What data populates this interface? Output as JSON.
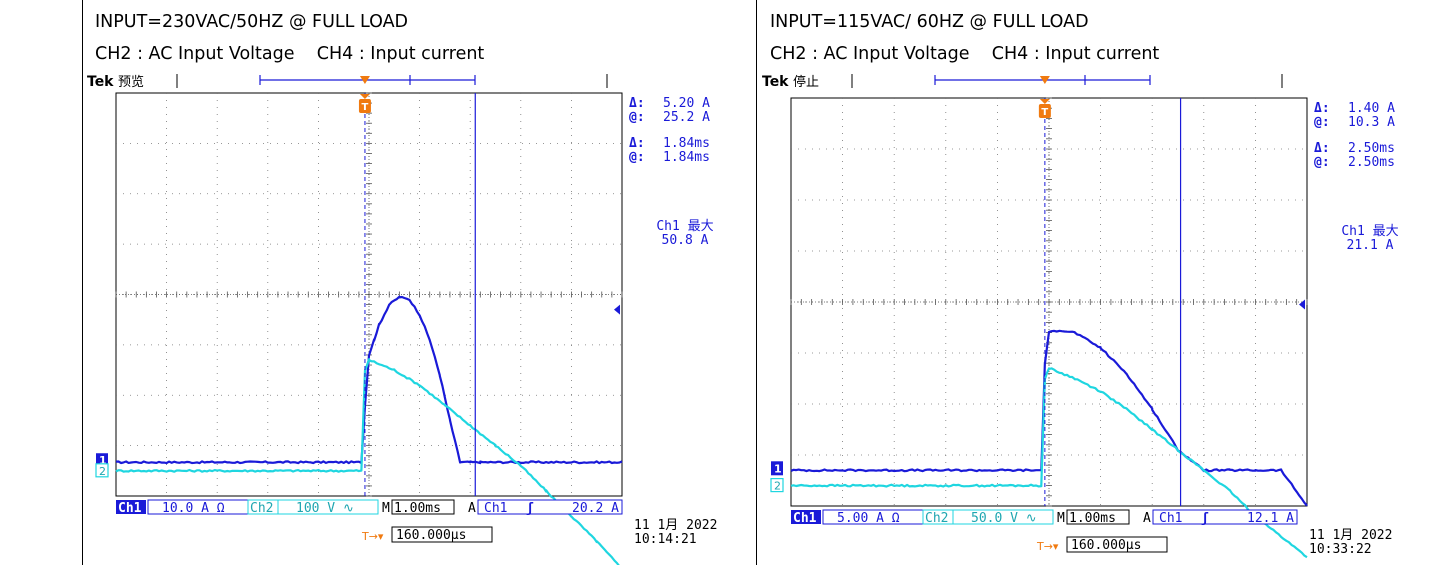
{
  "chart_data": [
    {
      "type": "line",
      "title": "INPUT=230VAC/50HZ @ FULL LOAD",
      "subtitle": "CH2 : AC Input Voltage    CH4 : Input current",
      "brand": "Tek",
      "status": "预览",
      "grid": true,
      "x_divisions": 10,
      "y_divisions": 8,
      "x_unit_per_div": "1.00ms",
      "readouts": {
        "amp_delta_label": "Δ:",
        "amp_delta": "5.20 A",
        "amp_at_label": "@:",
        "amp_at": "25.2 A",
        "time_delta_label": "Δ:",
        "time_delta": "1.84ms",
        "time_at_label": "@:",
        "time_at": "1.84ms",
        "max_label": "Ch1 最大",
        "max_value": "50.8 A"
      },
      "markers": {
        "ch1": "1",
        "ch2": "2",
        "trigger": "T"
      },
      "bottom_bar": {
        "ch1_label": "Ch1",
        "ch1_scale": "10.0 A Ω",
        "ch2_label": "Ch2",
        "ch2_scale": "100 V ∿",
        "m_label": "M",
        "m_value": "1.00ms",
        "trig_label": "A",
        "trig_ch": "Ch1",
        "trig_slope": "ʃ",
        "trig_level": "20.2 A",
        "pos_icon": "T→▾",
        "pos_value": "160.000μs",
        "date": "11 1月  2022",
        "time": "10:14:21"
      },
      "series": [
        {
          "name": "Ch1",
          "color": "#1a1ad8",
          "x_div": [
            0,
            4.85,
            4.92,
            5.0,
            5.1,
            5.2,
            5.4,
            5.6,
            5.8,
            6.0,
            6.2,
            6.4,
            6.6,
            6.8,
            7.0,
            7.2,
            7.4,
            10
          ],
          "y_div": [
            -3.33,
            -3.33,
            -2.2,
            -1.2,
            -0.9,
            -0.6,
            -0.2,
            -0.05,
            -0.1,
            -0.4,
            -0.9,
            -1.6,
            -2.5,
            -3.33,
            -3.33,
            -3.33,
            -3.33,
            -3.33
          ]
        },
        {
          "name": "Ch2",
          "color": "#1fd6e0",
          "x_div": [
            0,
            4.85,
            4.92,
            5.0,
            5.5,
            6.0,
            6.5,
            7.0,
            7.5,
            8.0,
            8.5,
            9.0,
            9.5,
            10
          ],
          "y_div": [
            -3.5,
            -3.5,
            -1.5,
            -1.3,
            -1.5,
            -1.8,
            -2.2,
            -2.6,
            -3.0,
            -3.4,
            -3.9,
            -4.4,
            -4.9,
            -5.45
          ]
        }
      ]
    },
    {
      "type": "line",
      "title": "INPUT=115VAC/ 60HZ @ FULL LOAD",
      "subtitle": "CH2 : AC Input Voltage    CH4 : Input current",
      "brand": "Tek",
      "status": "停止",
      "grid": true,
      "x_divisions": 10,
      "y_divisions": 8,
      "x_unit_per_div": "1.00ms",
      "readouts": {
        "amp_delta_label": "Δ:",
        "amp_delta": "1.40 A",
        "amp_at_label": "@:",
        "amp_at": "10.3 A",
        "time_delta_label": "Δ:",
        "time_delta": "2.50ms",
        "time_at_label": "@:",
        "time_at": "2.50ms",
        "max_label": "Ch1 最大",
        "max_value": "21.1 A"
      },
      "markers": {
        "ch1": "1",
        "ch2": "2",
        "trigger": "T"
      },
      "bottom_bar": {
        "ch1_label": "Ch1",
        "ch1_scale": "5.00 A Ω",
        "ch2_label": "Ch2",
        "ch2_scale": "50.0 V ∿",
        "m_label": "M",
        "m_value": "1.00ms",
        "trig_label": "A",
        "trig_ch": "Ch1",
        "trig_slope": "ʃ",
        "trig_level": "12.1 A",
        "pos_icon": "T→▾",
        "pos_value": "160.000μs",
        "date": "11 1月  2022",
        "time": "10:33:22"
      },
      "series": [
        {
          "name": "Ch1",
          "color": "#1a1ad8",
          "x_div": [
            0,
            4.85,
            4.92,
            5.0,
            5.2,
            5.5,
            6.0,
            6.5,
            7.0,
            7.5,
            8.0,
            8.5,
            9.0,
            9.5,
            10
          ],
          "y_div": [
            -3.3,
            -3.3,
            -1.2,
            -0.6,
            -0.55,
            -0.6,
            -0.9,
            -1.4,
            -2.1,
            -2.9,
            -3.3,
            -3.3,
            -3.3,
            -3.3,
            -4.0
          ],
          "note_hidden": ""
        },
        {
          "name": "Ch2",
          "color": "#1fd6e0",
          "x_div": [
            0,
            4.85,
            4.92,
            5.0,
            5.5,
            6.0,
            6.5,
            7.0,
            7.5,
            8.0,
            8.5,
            9.0,
            9.5,
            10
          ],
          "y_div": [
            -3.6,
            -3.6,
            -1.5,
            -1.3,
            -1.5,
            -1.75,
            -2.1,
            -2.5,
            -2.9,
            -3.3,
            -3.7,
            -4.2,
            -4.6,
            -5.0
          ]
        }
      ]
    }
  ]
}
